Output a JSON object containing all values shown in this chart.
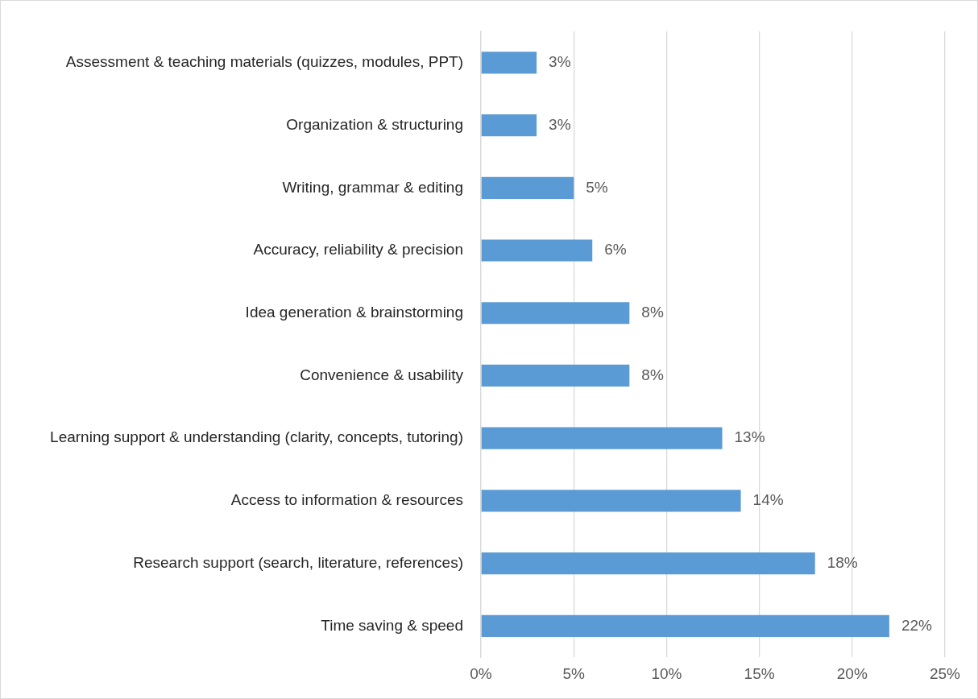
{
  "chart_data": {
    "type": "bar",
    "orientation": "horizontal",
    "categories": [
      "Assessment & teaching materials (quizzes, modules, PPT)",
      "Organization & structuring",
      "Writing, grammar & editing",
      "Accuracy, reliability & precision",
      "Idea generation & brainstorming",
      "Convenience & usability",
      "Learning support & understanding (clarity, concepts, tutoring)",
      "Access to information & resources",
      "Research support (search, literature, references)",
      "Time saving & speed"
    ],
    "values": [
      3,
      3,
      5,
      6,
      8,
      8,
      13,
      14,
      18,
      22
    ],
    "value_labels": [
      "3%",
      "3%",
      "5%",
      "6%",
      "8%",
      "8%",
      "13%",
      "14%",
      "18%",
      "22%"
    ],
    "color": "#5b9bd5",
    "xlim": [
      0,
      25
    ],
    "xticks": [
      {
        "value": 0,
        "label": "0%"
      },
      {
        "value": 5,
        "label": "5%"
      },
      {
        "value": 10,
        "label": "10%"
      },
      {
        "value": 15,
        "label": "15%"
      },
      {
        "value": 20,
        "label": "20%"
      },
      {
        "value": 25,
        "label": "25%"
      }
    ],
    "grid": "x",
    "legend": false
  }
}
